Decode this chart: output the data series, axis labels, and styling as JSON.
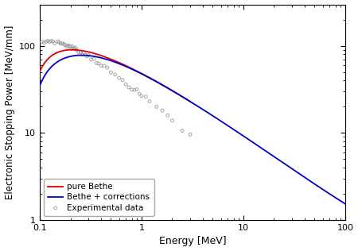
{
  "title": "",
  "xlabel": "Energy [MeV]",
  "ylabel": "Electronic Stopping Power [MeV/mm]",
  "xlim": [
    0.1,
    100
  ],
  "ylim": [
    1,
    300
  ],
  "legend_entries": [
    "pure Bethe",
    "Bethe + corrections",
    "Experimental data"
  ],
  "bethe_color": "#dd0000",
  "corrected_color": "#0000cc",
  "exp_color": "#999999",
  "background_color": "#ffffff",
  "legend_loc": "lower left",
  "linewidth": 1.3,
  "marker_size": 2.8,
  "T_exp": [
    0.105,
    0.11,
    0.115,
    0.12,
    0.125,
    0.13,
    0.135,
    0.14,
    0.15,
    0.155,
    0.16,
    0.165,
    0.17,
    0.175,
    0.18,
    0.185,
    0.19,
    0.195,
    0.2,
    0.205,
    0.21,
    0.215,
    0.22,
    0.225,
    0.23,
    0.24,
    0.25,
    0.26,
    0.27,
    0.28,
    0.29,
    0.3,
    0.32,
    0.34,
    0.36,
    0.38,
    0.4,
    0.43,
    0.46,
    0.5,
    0.55,
    0.6,
    0.65,
    0.7,
    0.75,
    0.8,
    0.85,
    0.9,
    0.95,
    1.0,
    1.1,
    1.2,
    1.4,
    1.6,
    1.8,
    2.0,
    2.5,
    3.0
  ],
  "S_exp": [
    107,
    110,
    112,
    113,
    114,
    114,
    113,
    112,
    110,
    109,
    108,
    107,
    105,
    104,
    102,
    101,
    100,
    99,
    98,
    96,
    95,
    94,
    93,
    91,
    90,
    88,
    86,
    84,
    82,
    80,
    78,
    76,
    73,
    70,
    67,
    64,
    61,
    57,
    54,
    50,
    46,
    43,
    40,
    37,
    35,
    33,
    31,
    30,
    28,
    27,
    25,
    23,
    20,
    18,
    16,
    14,
    11,
    9.5
  ],
  "T_bethe_start": 0.1,
  "T_bethe_end": 3.0,
  "T_corr_start": 0.1,
  "T_corr_end": 100.0,
  "bethe_scale": 1.0,
  "corr_low_E_val": 160,
  "figsize": [
    4.5,
    3.16
  ],
  "dpi": 100
}
